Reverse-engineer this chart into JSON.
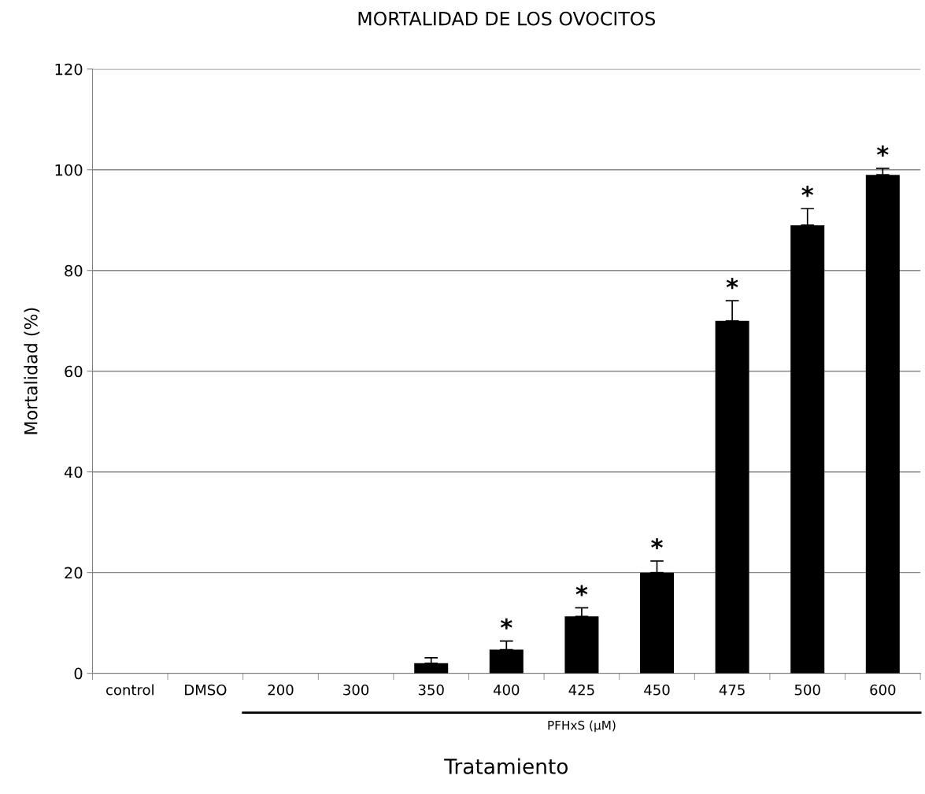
{
  "chart_data": {
    "type": "bar",
    "title": "MORTALIDAD DE LOS OVOCITOS",
    "xlabel": "Tratamiento",
    "ylabel": "Mortalidad (%)",
    "categories": [
      "control",
      "DMSO",
      "200",
      "300",
      "350",
      "400",
      "425",
      "450",
      "475",
      "500",
      "600"
    ],
    "values": [
      0,
      0,
      0,
      0,
      2,
      4.7,
      11.3,
      20,
      70,
      89,
      99
    ],
    "errors": [
      null,
      null,
      null,
      null,
      [
        2,
        3.1
      ],
      [
        4.7,
        6.4
      ],
      [
        11.3,
        13
      ],
      [
        20,
        22.3
      ],
      [
        70,
        74
      ],
      [
        89,
        92.3
      ],
      [
        99,
        100.3
      ]
    ],
    "color": "#000000",
    "ylim": [
      0,
      120
    ],
    "yticks": [
      0,
      20,
      40,
      60,
      80,
      100,
      120
    ],
    "grid": "y",
    "annotations": [
      "PFHxS (µM)",
      {
        "text": "*",
        "x": "400",
        "y": 6.4
      },
      {
        "text": "*",
        "x": "425",
        "y": 13
      },
      {
        "text": "*",
        "x": "450",
        "y": 22.3
      },
      {
        "text": "*",
        "x": "475",
        "y": 74
      },
      {
        "text": "*",
        "x": "500",
        "y": 92.3
      },
      {
        "text": "*",
        "x": "600",
        "y": 100.3
      }
    ]
  }
}
